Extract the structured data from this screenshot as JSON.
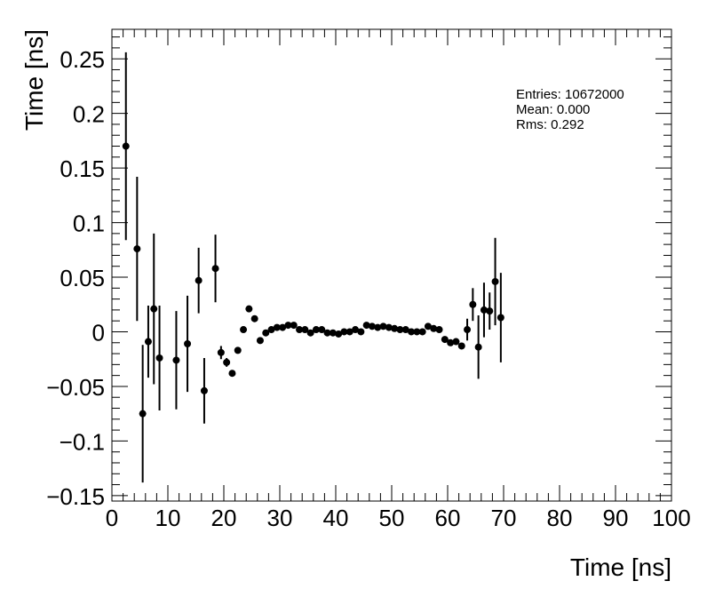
{
  "stats": {
    "entries": "Entries: 10672000",
    "mean": "Mean: 0.000",
    "rms": "Rms: 0.292"
  },
  "chart_data": {
    "type": "scatter",
    "title": "",
    "xlabel": "Time [ns]",
    "ylabel": "Time [ns]",
    "xlim": [
      0,
      100
    ],
    "ylim": [
      -0.155,
      0.277
    ],
    "x_ticks": [
      0,
      10,
      20,
      30,
      40,
      50,
      60,
      70,
      80,
      90,
      100
    ],
    "x_tick_labels": [
      "0",
      "10",
      "20",
      "30",
      "40",
      "50",
      "60",
      "70",
      "80",
      "90",
      "100"
    ],
    "y_ticks": [
      -0.15,
      -0.1,
      -0.05,
      0,
      0.05,
      0.1,
      0.15,
      0.2,
      0.25
    ],
    "y_tick_labels": [
      "−0.15",
      "−0.1",
      "−0.05",
      "0",
      "0.05",
      "0.1",
      "0.15",
      "0.2",
      "0.25"
    ],
    "grid": false,
    "legend": "none",
    "marker_color": "#000000",
    "series": [
      {
        "x": [
          2.5,
          4.5,
          5.5,
          6.5,
          7.5,
          8.5,
          11.5,
          13.5,
          15.5,
          16.5,
          18.5,
          19.5,
          20.5,
          21.5,
          22.5,
          23.5,
          24.5,
          25.5,
          26.5,
          27.5,
          28.5,
          29.5,
          30.5,
          31.5,
          32.5,
          33.5,
          34.5,
          35.5,
          36.5,
          37.5,
          38.5,
          39.5,
          40.5,
          41.5,
          42.5,
          43.5,
          44.5,
          45.5,
          46.5,
          47.5,
          48.5,
          49.5,
          50.5,
          51.5,
          52.5,
          53.5,
          54.5,
          55.5,
          56.5,
          57.5,
          58.5,
          59.5,
          60.5,
          61.5,
          62.5,
          63.5,
          64.5,
          65.5,
          66.5,
          67.5,
          68.5,
          69.5
        ],
        "y": [
          0.17,
          0.076,
          -0.075,
          -0.009,
          0.021,
          -0.024,
          -0.026,
          -0.011,
          0.047,
          -0.054,
          0.058,
          -0.019,
          -0.028,
          -0.038,
          -0.017,
          0.002,
          0.021,
          0.012,
          -0.008,
          -0.001,
          0.002,
          0.004,
          0.004,
          0.006,
          0.006,
          0.002,
          0.002,
          -0.001,
          0.002,
          0.002,
          -0.001,
          -0.001,
          -0.002,
          0.0,
          0.0,
          0.002,
          0.0,
          0.006,
          0.005,
          0.004,
          0.005,
          0.004,
          0.003,
          0.002,
          0.002,
          0.0,
          0.0,
          0.0,
          0.005,
          0.003,
          0.002,
          -0.007,
          -0.01,
          -0.009,
          -0.013,
          0.002,
          0.025,
          -0.014,
          0.02,
          0.019,
          0.046,
          0.013
        ],
        "yerr": [
          0.086,
          0.066,
          0.063,
          0.033,
          0.069,
          0.048,
          0.045,
          0.044,
          0.03,
          0.03,
          0.031,
          0.006,
          0.004,
          0.003,
          0.002,
          0.002,
          0.002,
          0.001,
          0.001,
          0.001,
          0.001,
          0.001,
          0.001,
          0.001,
          0.001,
          0.001,
          0.001,
          0.001,
          0.001,
          0.001,
          0.001,
          0.001,
          0.001,
          0.001,
          0.001,
          0.001,
          0.001,
          0.001,
          0.001,
          0.001,
          0.001,
          0.001,
          0.001,
          0.001,
          0.001,
          0.001,
          0.001,
          0.001,
          0.001,
          0.001,
          0.001,
          0.001,
          0.002,
          0.002,
          0.003,
          0.01,
          0.015,
          0.029,
          0.025,
          0.017,
          0.04,
          0.041
        ]
      }
    ]
  }
}
